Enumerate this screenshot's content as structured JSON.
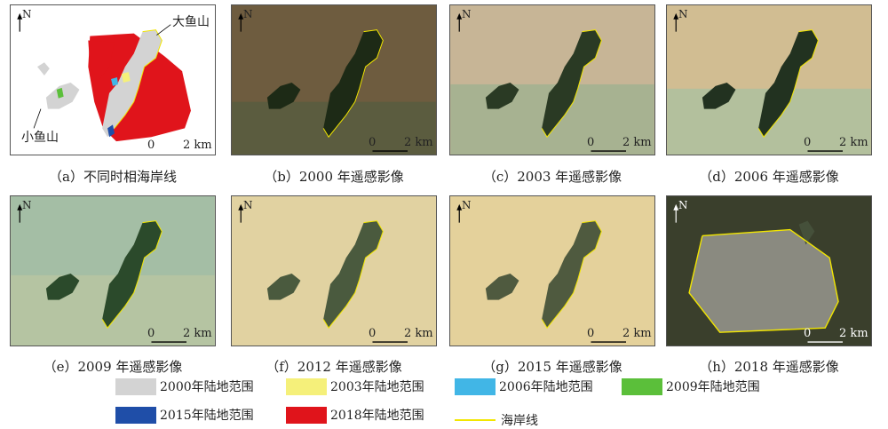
{
  "panels": [
    {
      "id": "a",
      "caption": "（a）不同时相海岸线"
    },
    {
      "id": "b",
      "caption": "（b）2000 年遥感影像"
    },
    {
      "id": "c",
      "caption": "（c）2003 年遥感影像"
    },
    {
      "id": "d",
      "caption": "（d）2006 年遥感影像"
    },
    {
      "id": "e",
      "caption": "（e）2009 年遥感影像"
    },
    {
      "id": "f",
      "caption": "（f）2012 年遥感影像"
    },
    {
      "id": "g",
      "caption": "（g）2015 年遥感影像"
    },
    {
      "id": "h",
      "caption": "（h）2018 年遥感影像"
    }
  ],
  "labels": {
    "north": "N",
    "scale": "2 km",
    "scale_zero": "0",
    "big_island": "大鱼山",
    "small_island": "小鱼山"
  },
  "legend": [
    {
      "label": "2000年陆地范围",
      "color": "#d3d3d3"
    },
    {
      "label": "2003年陆地范围",
      "color": "#f5f07a"
    },
    {
      "label": "2006年陆地范围",
      "color": "#41b6e6"
    },
    {
      "label": "2009年陆地范围",
      "color": "#5bbf3a"
    },
    {
      "label": "2015年陆地范围",
      "color": "#1f4ea8"
    },
    {
      "label": "2018年陆地范围",
      "color": "#e0141b"
    },
    {
      "label": "海岸线",
      "color": "#f2e600",
      "type": "line"
    }
  ]
}
